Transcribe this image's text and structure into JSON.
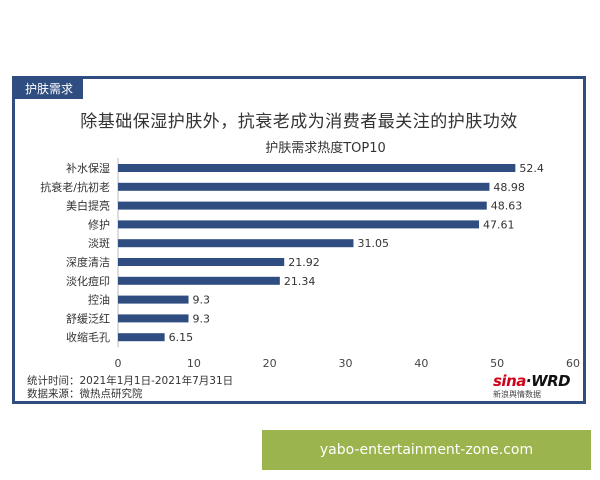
{
  "card": {
    "tag": "护肤需求",
    "headline": "除基础保湿护肤外，抗衰老成为消费者最关注的护肤功效"
  },
  "chart_data": {
    "type": "bar",
    "orientation": "horizontal",
    "title": "护肤需求热度TOP10",
    "categories": [
      "补水保湿",
      "抗衰老/抗初老",
      "美白提亮",
      "修护",
      "淡斑",
      "深度清洁",
      "淡化痘印",
      "控油",
      "舒缓泛红",
      "收缩毛孔"
    ],
    "values": [
      52.4,
      48.98,
      48.63,
      47.61,
      31.05,
      21.92,
      21.34,
      9.3,
      9.3,
      6.15
    ],
    "xlim": [
      0,
      60
    ],
    "xticks": [
      0,
      10,
      20,
      30,
      40,
      50,
      60
    ],
    "grid": false,
    "bar_color": "#2f4d80",
    "data_labels": true
  },
  "footer": {
    "line1": "统计时间：2021年1月1日-2021年7月31日",
    "line2": "数据来源：微热点研究院"
  },
  "logo": {
    "brand_red": "sina",
    "brand_dark": "·WRD",
    "sub": "新浪舆情数据"
  },
  "watermark": "yabo-entertainment-zone.com",
  "colors": {
    "accent": "#2f4d80",
    "watermark_bg": "#9bb44e"
  }
}
